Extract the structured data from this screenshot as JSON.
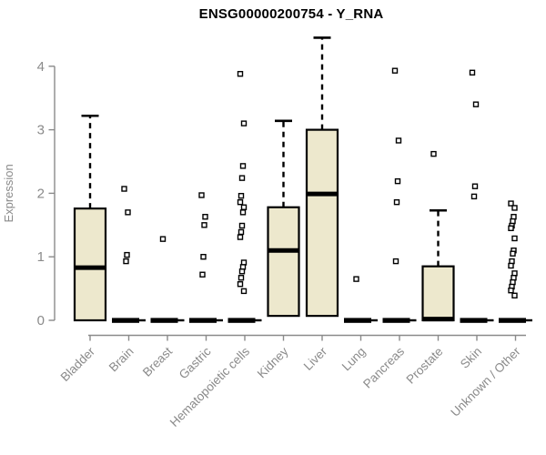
{
  "chart_data": {
    "type": "box",
    "title": "ENSG00000200754 - Y_RNA",
    "ylabel": "Expression",
    "xlabel": "",
    "ylim": [
      0,
      4
    ],
    "yticks": [
      0,
      1,
      2,
      3,
      4
    ],
    "grid": false,
    "legend": "none",
    "colors": {
      "box_fill": "#EDE8CD",
      "box_stroke": "#000000",
      "median": "#000000",
      "whisker": "#000000",
      "outlier_stroke": "#000000",
      "outlier_fill": "#ffffff",
      "axis": "#8a8a8a",
      "tick_label": "#8a8a8a",
      "title": "#000000",
      "background": "#ffffff"
    },
    "categories": [
      "Bladder",
      "Brain",
      "Breast",
      "Gastric",
      "Hematopoietic cells",
      "Kidney",
      "Liver",
      "Lung",
      "Pancreas",
      "Prostate",
      "Skin",
      "Unknown / Other"
    ],
    "series": [
      {
        "name": "Bladder",
        "flat": false,
        "box": {
          "min": 0,
          "q1": 0,
          "median": 0.83,
          "q3": 1.76,
          "whisker_high": 3.22
        },
        "outliers": []
      },
      {
        "name": "Brain",
        "flat": true,
        "box": {
          "min": 0,
          "q1": 0,
          "median": 0,
          "q3": 0,
          "whisker_high": 0
        },
        "outliers": [
          2.07,
          1.7,
          1.03,
          0.93
        ]
      },
      {
        "name": "Breast",
        "flat": true,
        "box": {
          "min": 0,
          "q1": 0,
          "median": 0,
          "q3": 0,
          "whisker_high": 0
        },
        "outliers": [
          1.28
        ]
      },
      {
        "name": "Gastric",
        "flat": true,
        "box": {
          "min": 0,
          "q1": 0,
          "median": 0,
          "q3": 0,
          "whisker_high": 0
        },
        "outliers": [
          1.97,
          1.63,
          1.5,
          1.0,
          0.72
        ]
      },
      {
        "name": "Hematopoietic cells",
        "flat": true,
        "box": {
          "min": 0,
          "q1": 0,
          "median": 0,
          "q3": 0,
          "whisker_high": 0
        },
        "outliers": [
          3.88,
          3.1,
          2.43,
          2.24,
          1.96,
          1.86,
          1.78,
          1.7,
          1.49,
          1.39,
          1.31,
          0.91,
          0.84,
          0.77,
          0.67,
          0.57,
          0.46
        ]
      },
      {
        "name": "Kidney",
        "flat": false,
        "box": {
          "min": 0.07,
          "q1": 0.07,
          "median": 1.1,
          "q3": 1.78,
          "whisker_high": 3.14
        },
        "outliers": []
      },
      {
        "name": "Liver",
        "flat": false,
        "box": {
          "min": 0.07,
          "q1": 0.07,
          "median": 1.99,
          "q3": 3.0,
          "whisker_high": 4.45
        },
        "outliers": []
      },
      {
        "name": "Lung",
        "flat": true,
        "box": {
          "min": 0,
          "q1": 0,
          "median": 0,
          "q3": 0,
          "whisker_high": 0
        },
        "outliers": [
          0.65
        ]
      },
      {
        "name": "Pancreas",
        "flat": true,
        "box": {
          "min": 0,
          "q1": 0,
          "median": 0,
          "q3": 0,
          "whisker_high": 0
        },
        "outliers": [
          3.93,
          2.83,
          2.19,
          1.86,
          0.93
        ]
      },
      {
        "name": "Prostate",
        "flat": false,
        "box": {
          "min": 0,
          "q1": 0,
          "median": 0.02,
          "q3": 0.85,
          "whisker_high": 1.73
        },
        "outliers": [
          2.62
        ]
      },
      {
        "name": "Skin",
        "flat": true,
        "box": {
          "min": 0,
          "q1": 0,
          "median": 0,
          "q3": 0,
          "whisker_high": 0
        },
        "outliers": [
          3.9,
          3.4,
          2.11,
          1.95
        ]
      },
      {
        "name": "Unknown / Other",
        "flat": true,
        "box": {
          "min": 0,
          "q1": 0,
          "median": 0,
          "q3": 0,
          "whisker_high": 0
        },
        "outliers": [
          1.84,
          1.77,
          1.63,
          1.56,
          1.49,
          1.45,
          1.29,
          1.1,
          1.05,
          0.93,
          0.86,
          0.74,
          0.67,
          0.6,
          0.53,
          0.47,
          0.39
        ]
      }
    ]
  }
}
